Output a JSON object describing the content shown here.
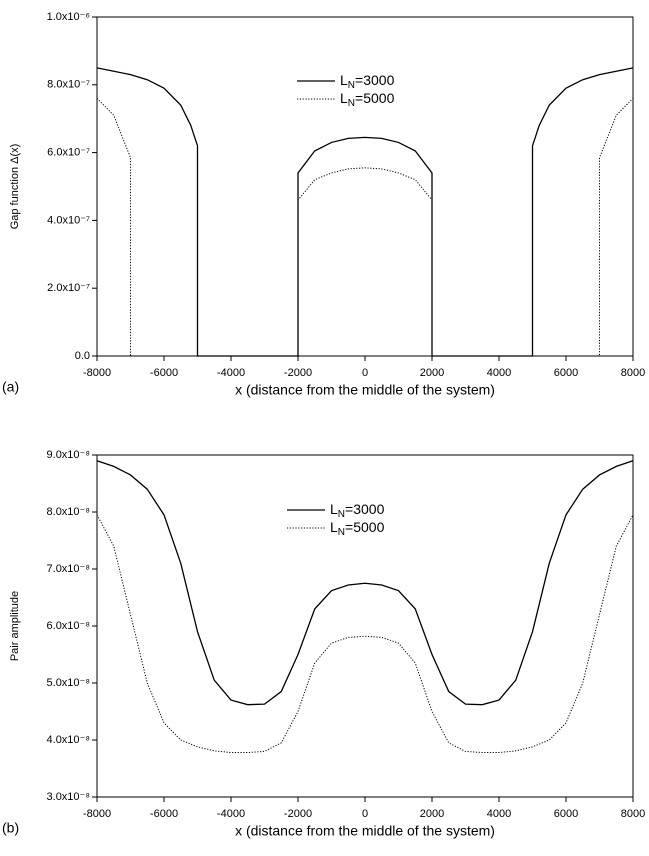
{
  "chart_data": [
    {
      "type": "line",
      "panel_label": "(a)",
      "x_label": "x (distance from the middle of the system)",
      "y_label": "Gap function Δ(x)",
      "x": [
        -8000,
        -7500,
        -7000,
        -7000,
        -6500,
        -6000,
        -5500,
        -5200,
        -5000,
        -5000,
        -2000,
        -2000,
        -1500,
        -1000,
        -500,
        0,
        500,
        1000,
        1500,
        2000,
        2000,
        5000,
        5000,
        5200,
        5500,
        6000,
        6500,
        7000,
        7000,
        7500,
        8000
      ],
      "series": [
        {
          "name": "LN=3000",
          "color": "#000000",
          "dash": "solid",
          "values": [
            8.5e-07,
            8.4e-07,
            8.3e-07,
            8.3e-07,
            8.15e-07,
            7.9e-07,
            7.4e-07,
            6.8e-07,
            6.2e-07,
            0,
            0,
            5.4e-07,
            6.05e-07,
            6.3e-07,
            6.42e-07,
            6.45e-07,
            6.42e-07,
            6.3e-07,
            6.05e-07,
            5.4e-07,
            0,
            0,
            6.2e-07,
            6.8e-07,
            7.4e-07,
            7.9e-07,
            8.15e-07,
            8.3e-07,
            8.3e-07,
            8.4e-07,
            8.5e-07
          ]
        },
        {
          "name": "LN=5000",
          "color": "#000000",
          "dash": "dotted",
          "values": [
            7.6e-07,
            7.1e-07,
            5.85e-07,
            0,
            0,
            0,
            0,
            0,
            0,
            0,
            0,
            4.6e-07,
            5.2e-07,
            5.4e-07,
            5.52e-07,
            5.55e-07,
            5.52e-07,
            5.4e-07,
            5.2e-07,
            4.6e-07,
            0,
            0,
            0,
            0,
            0,
            0,
            0,
            0,
            5.85e-07,
            7.1e-07,
            7.6e-07
          ]
        }
      ],
      "xlim": [
        -8000,
        8000
      ],
      "xticks": [
        -8000,
        -6000,
        -4000,
        -2000,
        0,
        2000,
        4000,
        6000,
        8000
      ],
      "ylim": [
        0,
        1e-06
      ],
      "yticks": [
        {
          "value": 0,
          "label": "0.0"
        },
        {
          "value": 2e-07,
          "label": "2.0x10⁻⁷"
        },
        {
          "value": 4e-07,
          "label": "4.0x10⁻⁷"
        },
        {
          "value": 6e-07,
          "label": "6.0x10⁻⁷"
        },
        {
          "value": 8e-07,
          "label": "8.0x10⁻⁷"
        },
        {
          "value": 1e-06,
          "label": "1.0x10⁻⁶"
        }
      ]
    },
    {
      "type": "line",
      "panel_label": "(b)",
      "x_label": "x (distance from the middle of the system)",
      "y_label": "Pair amplitude",
      "x": [
        -8000,
        -7500,
        -7000,
        -6500,
        -6000,
        -5500,
        -5000,
        -4500,
        -4000,
        -3500,
        -3000,
        -2500,
        -2000,
        -1500,
        -1000,
        -500,
        0,
        500,
        1000,
        1500,
        2000,
        2500,
        3000,
        3500,
        4000,
        4500,
        5000,
        5500,
        6000,
        6500,
        7000,
        7500,
        8000
      ],
      "series": [
        {
          "name": "LN=3000",
          "color": "#000000",
          "dash": "solid",
          "values": [
            8.9e-08,
            8.8e-08,
            8.65e-08,
            8.4e-08,
            7.95e-08,
            7.1e-08,
            5.9e-08,
            5.05e-08,
            4.7e-08,
            4.62e-08,
            4.63e-08,
            4.85e-08,
            5.5e-08,
            6.3e-08,
            6.62e-08,
            6.72e-08,
            6.75e-08,
            6.72e-08,
            6.62e-08,
            6.3e-08,
            5.5e-08,
            4.85e-08,
            4.63e-08,
            4.62e-08,
            4.7e-08,
            5.05e-08,
            5.9e-08,
            7.1e-08,
            7.95e-08,
            8.4e-08,
            8.65e-08,
            8.8e-08,
            8.9e-08
          ]
        },
        {
          "name": "LN=5000",
          "color": "#000000",
          "dash": "dotted",
          "values": [
            7.95e-08,
            7.4e-08,
            6.2e-08,
            5e-08,
            4.3e-08,
            4e-08,
            3.88e-08,
            3.81e-08,
            3.78e-08,
            3.78e-08,
            3.8e-08,
            3.95e-08,
            4.5e-08,
            5.35e-08,
            5.7e-08,
            5.8e-08,
            5.82e-08,
            5.8e-08,
            5.7e-08,
            5.35e-08,
            4.5e-08,
            3.95e-08,
            3.8e-08,
            3.78e-08,
            3.78e-08,
            3.81e-08,
            3.88e-08,
            4e-08,
            4.3e-08,
            5e-08,
            6.2e-08,
            7.4e-08,
            7.95e-08
          ]
        }
      ],
      "xlim": [
        -8000,
        8000
      ],
      "xticks": [
        -8000,
        -6000,
        -4000,
        -2000,
        0,
        2000,
        4000,
        6000,
        8000
      ],
      "ylim": [
        3e-08,
        9e-08
      ],
      "yticks": [
        {
          "value": 3e-08,
          "label": "3.0x10⁻⁸"
        },
        {
          "value": 4e-08,
          "label": "4.0x10⁻⁸"
        },
        {
          "value": 5e-08,
          "label": "5.0x10⁻⁸"
        },
        {
          "value": 6e-08,
          "label": "6.0x10⁻⁸"
        },
        {
          "value": 7e-08,
          "label": "7.0x10⁻⁸"
        },
        {
          "value": 8e-08,
          "label": "8.0x10⁻⁸"
        },
        {
          "value": 9e-08,
          "label": "9.0x10⁻⁸"
        }
      ]
    }
  ]
}
